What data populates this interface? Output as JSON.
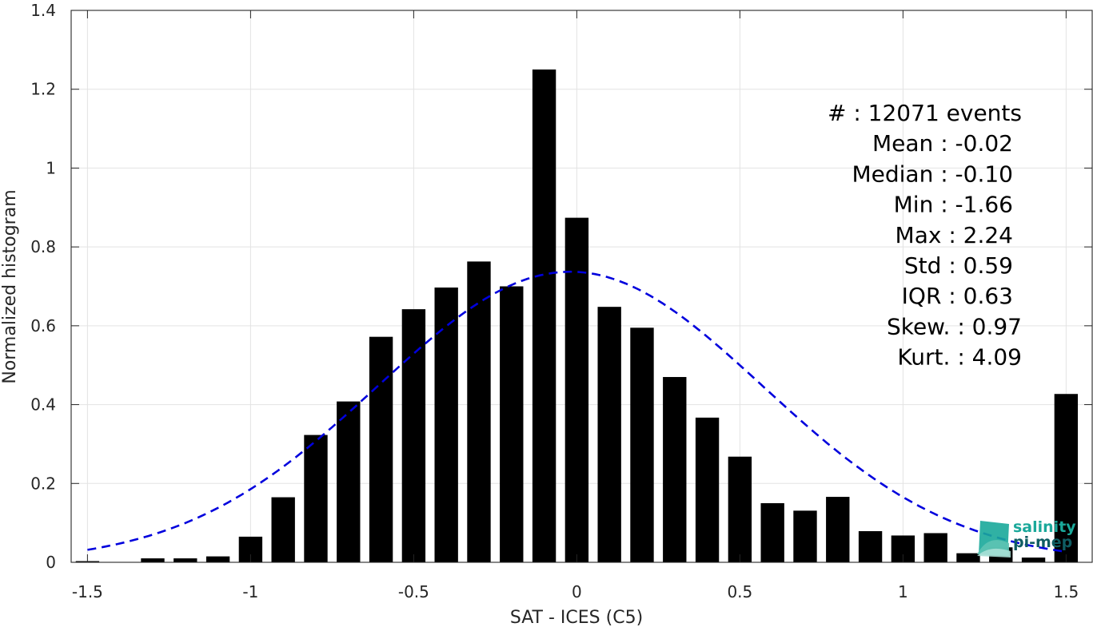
{
  "chart_data": {
    "type": "bar",
    "xlabel": "SAT - ICES (C5)",
    "ylabel": "Normalized histogram",
    "xlim": [
      -1.55,
      1.58
    ],
    "ylim": [
      0,
      1.4
    ],
    "grid": true,
    "x_ticks": [
      -1.5,
      -1,
      -0.5,
      0,
      0.5,
      1,
      1.5
    ],
    "x_tick_labels": [
      "-1.5",
      "-1",
      "-0.5",
      "0",
      "0.5",
      "1",
      "1.5"
    ],
    "y_ticks": [
      0,
      0.2,
      0.4,
      0.6,
      0.8,
      1,
      1.2,
      1.4
    ],
    "y_tick_labels": [
      "0",
      "0.2",
      "0.4",
      "0.6",
      "0.8",
      "1",
      "1.2",
      "1.4"
    ],
    "bin_width": 0.1,
    "bar_color": "#000000",
    "bars": [
      {
        "x": -1.5,
        "y": 0.003
      },
      {
        "x": -1.4,
        "y": 0.0
      },
      {
        "x": -1.3,
        "y": 0.01
      },
      {
        "x": -1.2,
        "y": 0.01
      },
      {
        "x": -1.1,
        "y": 0.015
      },
      {
        "x": -1.0,
        "y": 0.065
      },
      {
        "x": -0.9,
        "y": 0.165
      },
      {
        "x": -0.8,
        "y": 0.323
      },
      {
        "x": -0.7,
        "y": 0.408
      },
      {
        "x": -0.6,
        "y": 0.572
      },
      {
        "x": -0.5,
        "y": 0.642
      },
      {
        "x": -0.4,
        "y": 0.697
      },
      {
        "x": -0.3,
        "y": 0.763
      },
      {
        "x": -0.2,
        "y": 0.7
      },
      {
        "x": -0.1,
        "y": 1.25
      },
      {
        "x": 0.0,
        "y": 0.874
      },
      {
        "x": 0.1,
        "y": 0.648
      },
      {
        "x": 0.2,
        "y": 0.595
      },
      {
        "x": 0.3,
        "y": 0.47
      },
      {
        "x": 0.4,
        "y": 0.367
      },
      {
        "x": 0.5,
        "y": 0.268
      },
      {
        "x": 0.6,
        "y": 0.15
      },
      {
        "x": 0.7,
        "y": 0.131
      },
      {
        "x": 0.8,
        "y": 0.166
      },
      {
        "x": 0.9,
        "y": 0.079
      },
      {
        "x": 1.0,
        "y": 0.068
      },
      {
        "x": 1.1,
        "y": 0.074
      },
      {
        "x": 1.2,
        "y": 0.023
      },
      {
        "x": 1.3,
        "y": 0.038
      },
      {
        "x": 1.4,
        "y": 0.012
      },
      {
        "x": 1.5,
        "y": 0.427
      }
    ],
    "fit": {
      "kind": "gaussian",
      "mean": -0.02,
      "std": 0.59,
      "x_range": [
        -1.5,
        1.5
      ],
      "color": "#0000dd",
      "style": "dashed"
    }
  },
  "stats": [
    {
      "text": "#  : 12071 events",
      "right": "1278"
    },
    {
      "text": "Mean : -0.02",
      "right": "1267"
    },
    {
      "text": "Median : -0.10",
      "right": "1267"
    },
    {
      "text": "Min : -1.66",
      "right": "1267"
    },
    {
      "text": "Max : 2.24",
      "right": "1267"
    },
    {
      "text": "Std : 0.59",
      "right": "1267"
    },
    {
      "text": "IQR : 0.63",
      "right": "1267"
    },
    {
      "text": "Skew. : 0.97",
      "right": "1278"
    },
    {
      "text": "Kurt. : 4.09",
      "right": "1278"
    }
  ],
  "logo": {
    "line1": "salinity",
    "line2": "pi-mep",
    "color1": "#1aa89a",
    "color2": "#0f5d63"
  }
}
